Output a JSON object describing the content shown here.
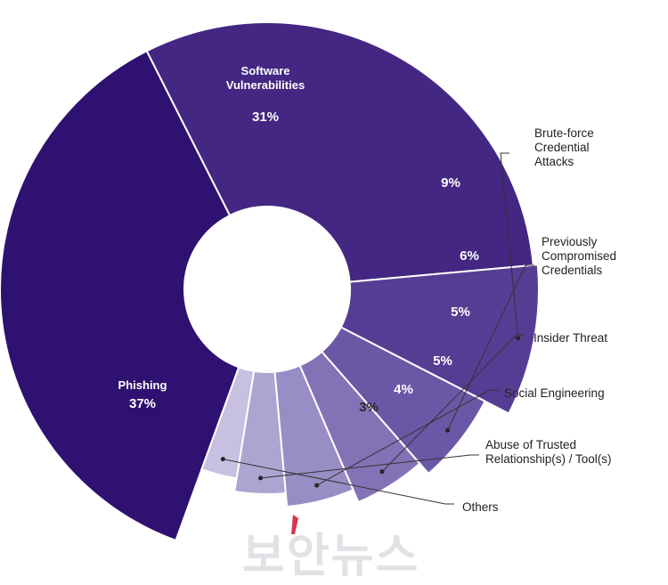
{
  "chart_data": {
    "type": "pie",
    "style": "donut",
    "slices": [
      {
        "name": "Phishing",
        "value": 37,
        "label": "37%",
        "name_lines": [
          "Phishing"
        ],
        "color": "#2e1170"
      },
      {
        "name": "Software Vulnerabilities",
        "value": 31,
        "label": "31%",
        "name_lines": [
          "Software",
          "Vulnerabilities"
        ],
        "color": "#432782"
      },
      {
        "name": "Brute-force Credential Attacks",
        "value": 9,
        "label": "9%",
        "name_lines": [
          "Brute-force",
          "Credential",
          "Attacks"
        ],
        "color": "#563d94"
      },
      {
        "name": "Previously Compromised Credentials",
        "value": 6,
        "label": "6%",
        "name_lines": [
          "Previously",
          "Compromised",
          "Credentials"
        ],
        "color": "#6a58a6"
      },
      {
        "name": "Insider Threat",
        "value": 5,
        "label": "5%",
        "name_lines": [
          "Insider Threat"
        ],
        "color": "#8372b6"
      },
      {
        "name": "Social Engineering",
        "value": 5,
        "label": "5%",
        "name_lines": [
          "Social Engineering"
        ],
        "color": "#998dc6"
      },
      {
        "name": "Abuse of Trusted Relationship(s) / Tool(s)",
        "value": 4,
        "label": "4%",
        "name_lines": [
          "Abuse of Trusted",
          "Relationship(s) / Tool(s)"
        ],
        "color": "#ada4d2"
      },
      {
        "name": "Others",
        "value": 3,
        "label": "3%",
        "name_lines": [
          "Others"
        ],
        "color": "#c7c0e0"
      }
    ]
  },
  "watermark": {
    "text": "보안뉴스",
    "accent_color": "#d21f3c"
  }
}
